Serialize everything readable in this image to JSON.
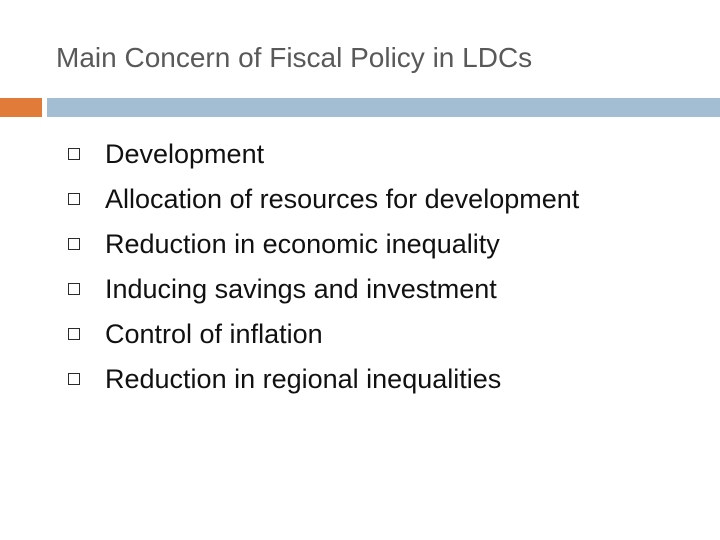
{
  "slide": {
    "title": "Main Concern of Fiscal Policy in LDCs",
    "accent_colors": {
      "orange": "#e07b39",
      "blue": "#a3bdd3"
    },
    "bullet_icon": "square-bullet-icon",
    "bullets": [
      "Development",
      "Allocation of resources for development",
      "Reduction in economic inequality",
      "Inducing savings and investment",
      "Control of inflation",
      "Reduction in regional inequalities"
    ]
  }
}
